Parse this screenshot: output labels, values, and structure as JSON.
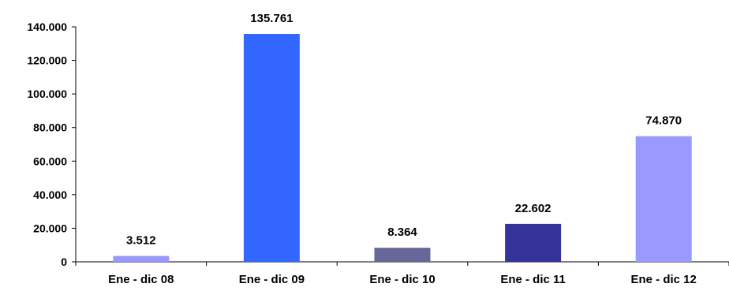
{
  "chart_data": {
    "type": "bar",
    "title": "",
    "xlabel": "",
    "ylabel": "",
    "categories": [
      "Ene - dic 08",
      "Ene - dic 09",
      "Ene - dic 10",
      "Ene - dic 11",
      "Ene - dic 12"
    ],
    "values": [
      3512,
      135761,
      8364,
      22602,
      74870
    ],
    "value_labels": [
      "3.512",
      "135.761",
      "8.364",
      "22.602",
      "74.870"
    ],
    "bar_colors": [
      "#9999ff",
      "#3366ff",
      "#666699",
      "#333399",
      "#9999ff"
    ],
    "ylim": [
      0,
      140000
    ],
    "yticks": [
      0,
      20000,
      40000,
      60000,
      80000,
      100000,
      120000,
      140000
    ],
    "ytick_labels": [
      "0",
      "20.000",
      "40.000",
      "60.000",
      "80.000",
      "100.000",
      "120.000",
      "140.000"
    ],
    "grid": false,
    "legend": "none"
  }
}
